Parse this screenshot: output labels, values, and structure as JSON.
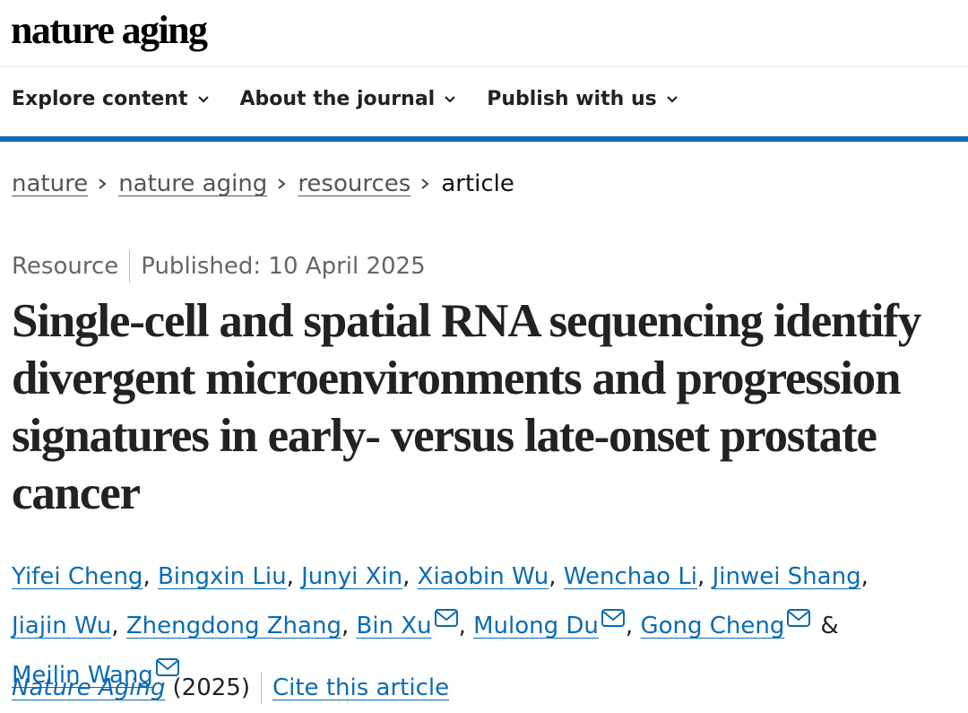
{
  "header": {
    "logo": "nature aging",
    "nav": [
      "Explore content",
      "About the journal",
      "Publish with us"
    ]
  },
  "breadcrumbs": [
    "nature",
    "nature aging",
    "resources",
    "article"
  ],
  "article": {
    "type": "Resource",
    "published": "Published: 10 April 2025",
    "title": "Single-cell and spatial RNA sequencing identify divergent microenvironments and progression signatures in early- versus late-onset prostate cancer",
    "authors": [
      {
        "name": "Yifei Cheng",
        "separator": ","
      },
      {
        "name": "Bingxin Liu",
        "separator": ","
      },
      {
        "name": "Junyi Xin",
        "separator": ","
      },
      {
        "name": "Xiaobin Wu",
        "separator": ","
      },
      {
        "name": "Wenchao Li",
        "separator": ","
      },
      {
        "name": "Jinwei Shang",
        "separator": ","
      },
      {
        "name": "Jiajin Wu",
        "separator": ","
      },
      {
        "name": "Zhengdong Zhang",
        "separator": ","
      },
      {
        "name": "Bin Xu",
        "separator": ",",
        "corresponding": true
      },
      {
        "name": "Mulong Du",
        "separator": ",",
        "corresponding": true
      },
      {
        "name": "Gong Cheng",
        "separator": "&",
        "corresponding": true
      },
      {
        "name": "Meilin Wang",
        "corresponding": true
      }
    ],
    "journal": "Nature Aging",
    "year": "(2025)",
    "cite": "Cite this article"
  }
}
